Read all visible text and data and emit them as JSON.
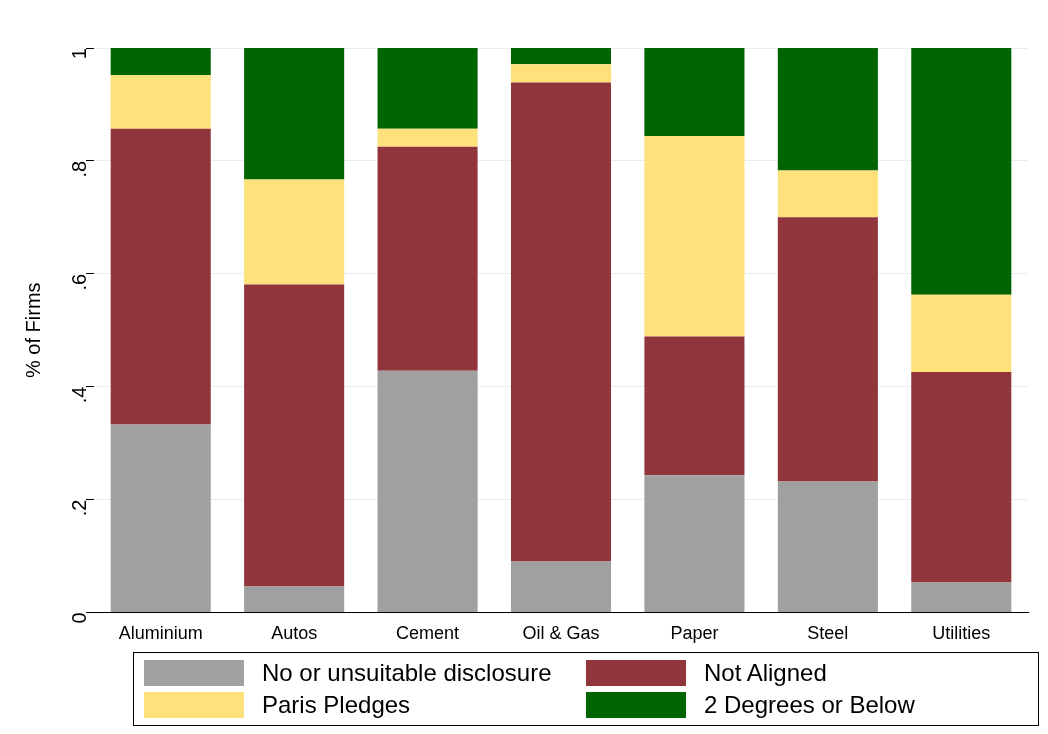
{
  "chart_data": {
    "type": "bar",
    "stacked": true,
    "ylabel": "% of Firms",
    "categories": [
      "Aluminium",
      "Autos",
      "Cement",
      "Oil & Gas",
      "Paper",
      "Steel",
      "Utilities"
    ],
    "series": [
      {
        "name": "No or unsuitable disclosure",
        "color": "#a0a0a0",
        "values": [
          0.333,
          0.046,
          0.428,
          0.09,
          0.243,
          0.232,
          0.053
        ]
      },
      {
        "name": "Not Aligned",
        "color": "#90353b",
        "values": [
          0.524,
          0.535,
          0.397,
          0.849,
          0.246,
          0.468,
          0.373
        ]
      },
      {
        "name": "Paris Pledges",
        "color": "#fee17a",
        "values": [
          0.095,
          0.186,
          0.032,
          0.032,
          0.355,
          0.083,
          0.137
        ]
      },
      {
        "name": "2 Degrees or Below",
        "color": "#006400",
        "values": [
          0.048,
          0.233,
          0.143,
          0.029,
          0.156,
          0.217,
          0.437
        ]
      }
    ],
    "ylim": [
      0,
      1
    ],
    "yticks": [
      0,
      {
        "value": 0.2,
        "label": ".2"
      },
      {
        "value": 0.4,
        "label": ".4"
      },
      {
        "value": 0.6,
        "label": ".6"
      },
      {
        "value": 0.8,
        "label": ".8"
      },
      1
    ],
    "grid": "y",
    "legend": "bottom"
  }
}
